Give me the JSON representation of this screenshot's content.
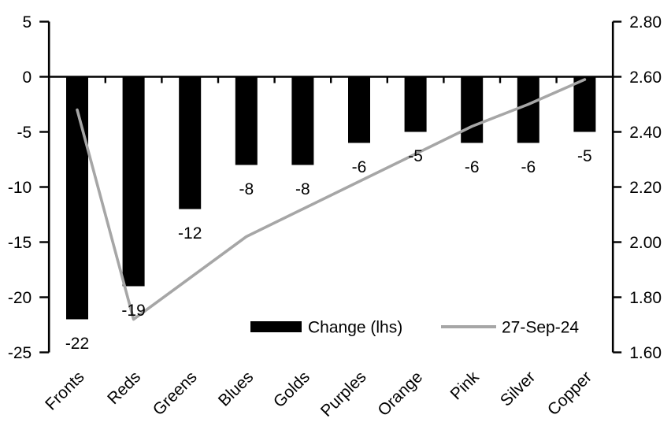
{
  "chart_data": {
    "type": "combo",
    "title": "",
    "xlabel": "",
    "ylabel_left": "",
    "ylabel_right": "",
    "grid": false,
    "categories": [
      "Fronts",
      "Reds",
      "Greens",
      "Blues",
      "Golds",
      "Purples",
      "Orange",
      "Pink",
      "Silver",
      "Copper"
    ],
    "series": [
      {
        "name": "Change (lhs)",
        "type": "bar",
        "axis": "left",
        "color": "#000000",
        "values": [
          -22,
          -19,
          -12,
          -8,
          -8,
          -6,
          -5,
          -6,
          -6,
          -5
        ],
        "data_labels": [
          "-22",
          "-19",
          "-12",
          "-8",
          "-8",
          "-6",
          "-5",
          "-6",
          "-6",
          "-5"
        ]
      },
      {
        "name": "27-Sep-24",
        "type": "line",
        "axis": "right",
        "color": "#A6A6A6",
        "values": [
          2.48,
          1.72,
          1.87,
          2.02,
          2.12,
          2.22,
          2.32,
          2.42,
          2.5,
          2.59
        ]
      }
    ],
    "left_axis": {
      "min": -25,
      "max": 5,
      "tick_labels": [
        "5",
        "0",
        "-5",
        "-10",
        "-15",
        "-20",
        "-25"
      ]
    },
    "right_axis": {
      "min": 1.6,
      "max": 2.8,
      "tick_labels": [
        "2.80",
        "2.60",
        "2.40",
        "2.20",
        "2.00",
        "1.80",
        "1.60"
      ]
    },
    "legend": {
      "position": "bottom-inside",
      "items": [
        {
          "label": "Change (lhs)",
          "swatch": "bar",
          "color": "#000000"
        },
        {
          "label": "27-Sep-24",
          "swatch": "line",
          "color": "#A6A6A6"
        }
      ]
    }
  },
  "colors": {
    "bar": "#000000",
    "line": "#A6A6A6",
    "axis": "#000000",
    "text": "#000000",
    "background": "#FFFFFF"
  }
}
